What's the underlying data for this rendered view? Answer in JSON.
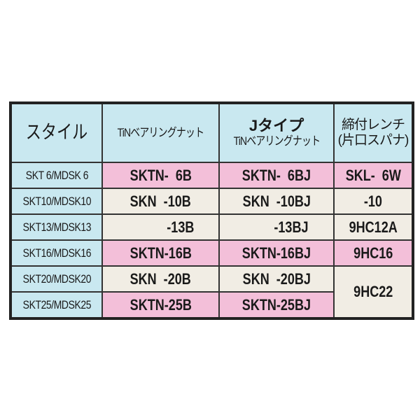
{
  "headers": {
    "style": "スタイル",
    "tin_nut": "TiNベアリングナット",
    "j_type_line1": "Jタイプ",
    "j_type_line2": "TiNベアリングナット",
    "wrench_line1": "締付レンチ",
    "wrench_line2": "(片口スパナ)"
  },
  "rows": [
    {
      "style": "SKT 6/MDSK 6",
      "tin": "SKTN-  6B",
      "j": "SKTN-  6BJ",
      "wrench": "SKL-  6W",
      "bg": "pink"
    },
    {
      "style": "SKT10/MDSK10",
      "tin": "SKN  -10B",
      "j": "SKN  -10BJ",
      "wrench": "-10",
      "bg": "cream"
    },
    {
      "style": "SKT13/MDSK13",
      "tin": "-13B",
      "j": "-13BJ",
      "wrench": "9HC12A",
      "bg": "cream"
    },
    {
      "style": "SKT16/MDSK16",
      "tin": "SKTN-16B",
      "j": "SKTN-16BJ",
      "wrench": "9HC16",
      "bg": "pink"
    },
    {
      "style": "SKT20/MDSK20",
      "tin": "SKN  -20B",
      "j": "SKN  -20BJ",
      "wrench": "9HC22",
      "bg": "cream"
    },
    {
      "style": "SKT25/MDSK25",
      "tin": "SKTN-25B",
      "j": "SKTN-25BJ",
      "bg": "pink"
    }
  ],
  "colors": {
    "header": "#c9e8f0",
    "pink": "#f3bfd9",
    "cream": "#f1ede4",
    "border": "#222222"
  }
}
